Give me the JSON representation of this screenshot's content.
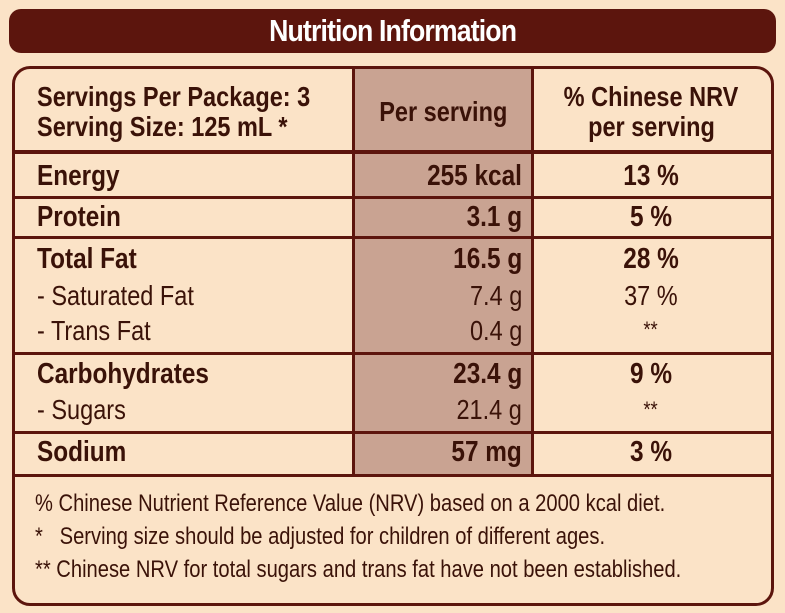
{
  "title": "Nutrition Information",
  "header": {
    "servings_per_package": "Servings Per Package: 3",
    "serving_size": "Serving Size: 125 mL *",
    "per_serving": "Per serving",
    "nrv_line1": "% Chinese NRV",
    "nrv_line2": "per serving"
  },
  "rows": [
    {
      "label": "Energy",
      "per_serving": "255 kcal",
      "nrv": "13 %"
    },
    {
      "label": "Protein",
      "per_serving": "3.1 g",
      "nrv": "5 %"
    },
    {
      "label": "Total Fat",
      "per_serving": "16.5 g",
      "nrv": "28 %"
    },
    {
      "label": "- Saturated Fat",
      "per_serving": "7.4 g",
      "nrv": "37 %"
    },
    {
      "label": "- Trans Fat",
      "per_serving": "0.4 g",
      "nrv": "**"
    },
    {
      "label": "Carbohydrates",
      "per_serving": "23.4 g",
      "nrv": "9 %"
    },
    {
      "label": "- Sugars",
      "per_serving": "21.4 g",
      "nrv": "**"
    },
    {
      "label": "Sodium",
      "per_serving": "57 mg",
      "nrv": "3 %"
    }
  ],
  "notes": [
    "% Chinese Nutrient Reference Value (NRV) based on a 2000 kcal diet.",
    "*   Serving size should be adjusted for children of different ages.",
    "** Chinese NRV for total sugars and trans fat have not been established."
  ],
  "colors": {
    "dark_brown": "#5c150d",
    "background": "#fbe3c7",
    "column_shade": "#c9a392"
  }
}
